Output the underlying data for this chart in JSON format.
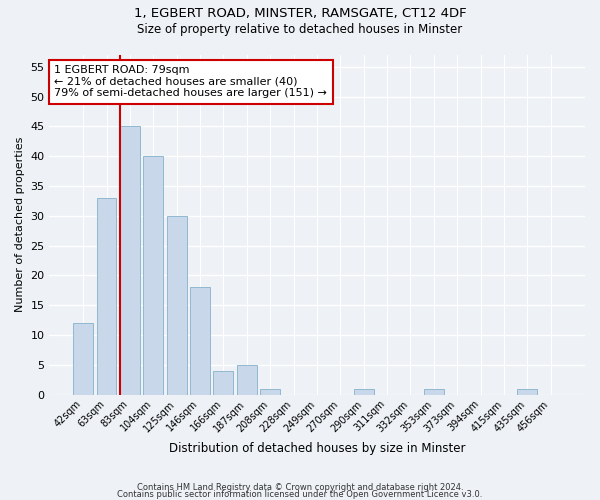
{
  "title1": "1, EGBERT ROAD, MINSTER, RAMSGATE, CT12 4DF",
  "title2": "Size of property relative to detached houses in Minster",
  "xlabel": "Distribution of detached houses by size in Minster",
  "ylabel": "Number of detached properties",
  "bar_color": "#c8d8ea",
  "bar_edge_color": "#90b8d0",
  "categories": [
    "42sqm",
    "63sqm",
    "83sqm",
    "104sqm",
    "125sqm",
    "146sqm",
    "166sqm",
    "187sqm",
    "208sqm",
    "228sqm",
    "249sqm",
    "270sqm",
    "290sqm",
    "311sqm",
    "332sqm",
    "353sqm",
    "373sqm",
    "394sqm",
    "415sqm",
    "435sqm",
    "456sqm"
  ],
  "values": [
    12,
    33,
    45,
    40,
    30,
    18,
    4,
    5,
    1,
    0,
    0,
    0,
    1,
    0,
    0,
    1,
    0,
    0,
    0,
    1,
    0
  ],
  "vline_color": "#cc0000",
  "annotation_text": "1 EGBERT ROAD: 79sqm\n← 21% of detached houses are smaller (40)\n79% of semi-detached houses are larger (151) →",
  "annotation_box_color": "#ffffff",
  "annotation_box_edge_color": "#cc0000",
  "ylim": [
    0,
    57
  ],
  "yticks": [
    0,
    5,
    10,
    15,
    20,
    25,
    30,
    35,
    40,
    45,
    50,
    55
  ],
  "footer1": "Contains HM Land Registry data © Crown copyright and database right 2024.",
  "footer2": "Contains public sector information licensed under the Open Government Licence v3.0.",
  "background_color": "#eef2f6",
  "grid_color": "#ffffff"
}
